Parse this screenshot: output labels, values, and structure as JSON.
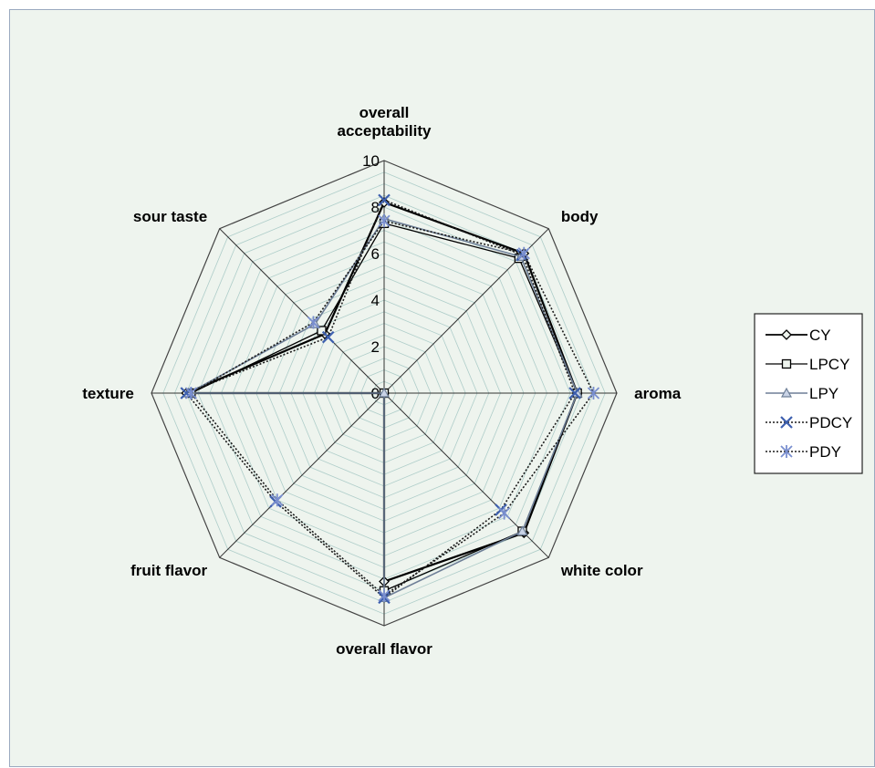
{
  "chart_data": {
    "type": "radar",
    "categories": [
      "overall acceptability",
      "body",
      "aroma",
      "white color",
      "overall flavor",
      "fruit flavor",
      "texture",
      "sour taste"
    ],
    "category_label_lines": [
      [
        "overall",
        "acceptability"
      ],
      [
        "body"
      ],
      [
        "aroma"
      ],
      [
        "white color"
      ],
      [
        "overall flavor"
      ],
      [
        "fruit flavor"
      ],
      [
        "texture"
      ],
      [
        "sour taste"
      ]
    ],
    "rlim": [
      0,
      10
    ],
    "ticks": [
      "0",
      "2",
      "4",
      "6",
      "8",
      "10"
    ],
    "minor_grid_step": 0.5,
    "series": [
      {
        "name": "CY",
        "color": "#000000",
        "dash": "",
        "marker": "diamond",
        "width": 2.2,
        "values": [
          8.2,
          8.5,
          8.3,
          8.5,
          8.1,
          0,
          8.5,
          3.6
        ]
      },
      {
        "name": "LPCY",
        "color": "#000000",
        "dash": "",
        "marker": "square",
        "width": 1.3,
        "values": [
          7.3,
          8.2,
          8.3,
          8.4,
          8.5,
          0,
          8.3,
          3.8
        ]
      },
      {
        "name": "LPY",
        "color": "#6e7f97",
        "dash": "",
        "marker": "triangle",
        "width": 1.6,
        "values": [
          7.5,
          8.3,
          8.3,
          8.4,
          8.8,
          0,
          8.4,
          4.2
        ]
      },
      {
        "name": "PDCY",
        "color": "#1a1a1a",
        "dash": "2,2",
        "marker": "x",
        "width": 1.6,
        "values": [
          8.3,
          8.4,
          8.2,
          7.1,
          8.8,
          6.6,
          8.5,
          3.4
        ]
      },
      {
        "name": "PDY",
        "color": "#1a1a1a",
        "dash": "2,2",
        "marker": "asterisk",
        "width": 1.6,
        "values": [
          7.4,
          8.5,
          9.0,
          7.3,
          8.7,
          6.5,
          8.3,
          4.3
        ]
      }
    ],
    "legend_position": "right",
    "grid": true
  }
}
